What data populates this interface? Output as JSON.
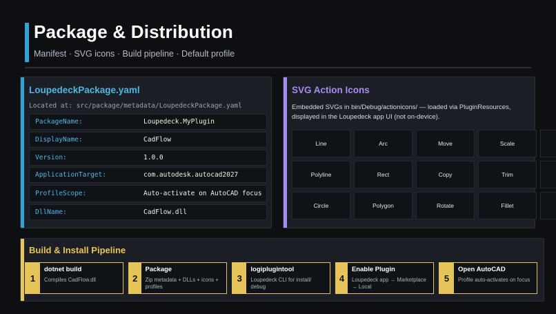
{
  "header": {
    "title": "Package & Distribution",
    "subtitle": "Manifest · SVG icons · Build pipeline · Default profile"
  },
  "colors": {
    "title_accent": "#33a3d6",
    "manifest_accent": "#33a3d6",
    "icons_accent": "#a88cf0",
    "pipeline_accent": "#e6c45a",
    "background": "#0d0f12",
    "panel": "#1b1f25"
  },
  "manifest": {
    "heading": "LoupedeckPackage.yaml",
    "location": "Located at: src/package/metadata/LoupedeckPackage.yaml",
    "rows": [
      {
        "key": "PackageName:",
        "value": "Loupedeck.MyPlugin"
      },
      {
        "key": "DisplayName:",
        "value": "CadFlow"
      },
      {
        "key": "Version:",
        "value": "1.0.0"
      },
      {
        "key": "ApplicationTarget:",
        "value": "com.autodesk.autocad2027"
      },
      {
        "key": "ProfileScope:",
        "value": "Auto-activate on AutoCAD focus"
      },
      {
        "key": "DllName:",
        "value": "CadFlow.dll"
      }
    ]
  },
  "icons": {
    "heading": "SVG Action Icons",
    "description": "Embedded SVGs in bin/Debug/actionicons/ — loaded via PluginResources, displayed in the Loupedeck app UI (not on-device).",
    "items": [
      "Line",
      "Arc",
      "Move",
      "Scale",
      "",
      "Polyline",
      "Rect",
      "Copy",
      "Trim",
      "",
      "Circle",
      "Polygon",
      "Rotate",
      "Fillet",
      ""
    ]
  },
  "pipeline": {
    "heading": "Build & Install Pipeline",
    "steps": [
      {
        "num": "1",
        "title": "dotnet build",
        "desc": "Compiles CadFlow.dll"
      },
      {
        "num": "2",
        "title": "Package",
        "desc": "Zip metadata + DLLs + icons + profiles"
      },
      {
        "num": "3",
        "title": "logiplugintool",
        "desc": "Loupedeck CLI for install/ debug"
      },
      {
        "num": "4",
        "title": "Enable Plugin",
        "desc": "Loupedeck app → Marketplace → Local"
      },
      {
        "num": "5",
        "title": "Open AutoCAD",
        "desc": "Profile auto-activates on focus"
      }
    ]
  }
}
